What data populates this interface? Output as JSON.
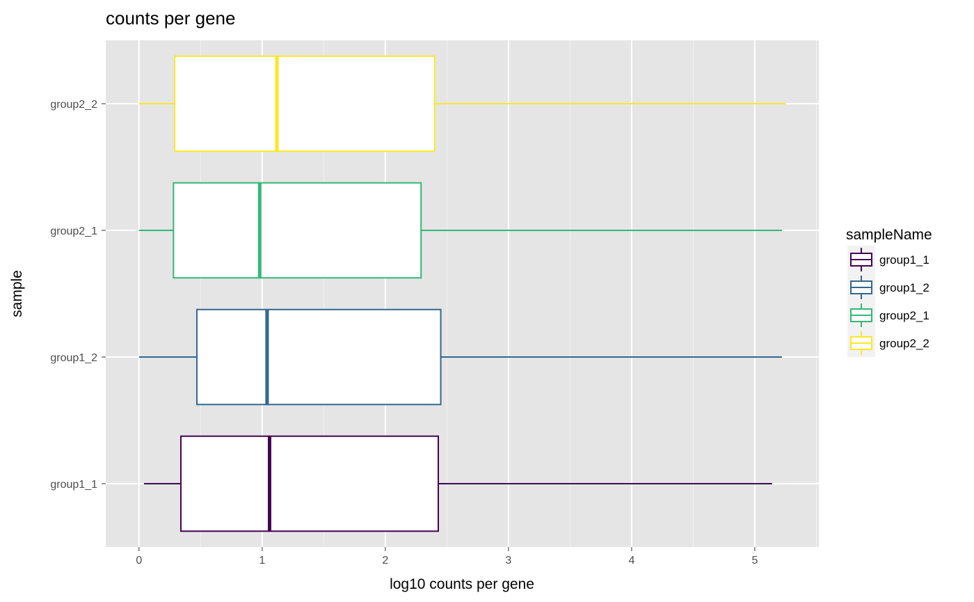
{
  "chart_data": {
    "type": "boxplot",
    "orientation": "horizontal",
    "title": "counts per gene",
    "xlabel": "log10 counts per gene",
    "ylabel": "sample",
    "xlim": [
      -0.27,
      5.52
    ],
    "x_ticks": [
      0,
      1,
      2,
      3,
      4,
      5
    ],
    "grid": true,
    "background": "#e5e5e5",
    "legend": {
      "title": "sampleName",
      "placement": "right",
      "entries": [
        "group1_1",
        "group1_2",
        "group2_1",
        "group2_2"
      ]
    },
    "categories": [
      "group1_1",
      "group1_2",
      "group2_1",
      "group2_2"
    ],
    "series": [
      {
        "name": "group1_1",
        "color": "#440154",
        "min": 0.04,
        "q1": 0.34,
        "median": 1.06,
        "q3": 2.43,
        "max": 5.14
      },
      {
        "name": "group1_2",
        "color": "#31688e",
        "min": 0.0,
        "q1": 0.47,
        "median": 1.04,
        "q3": 2.45,
        "max": 5.22
      },
      {
        "name": "group2_1",
        "color": "#35b779",
        "min": 0.0,
        "q1": 0.28,
        "median": 0.98,
        "q3": 2.29,
        "max": 5.22
      },
      {
        "name": "group2_2",
        "color": "#fde725",
        "min": 0.0,
        "q1": 0.29,
        "median": 1.12,
        "q3": 2.4,
        "max": 5.25
      }
    ]
  }
}
